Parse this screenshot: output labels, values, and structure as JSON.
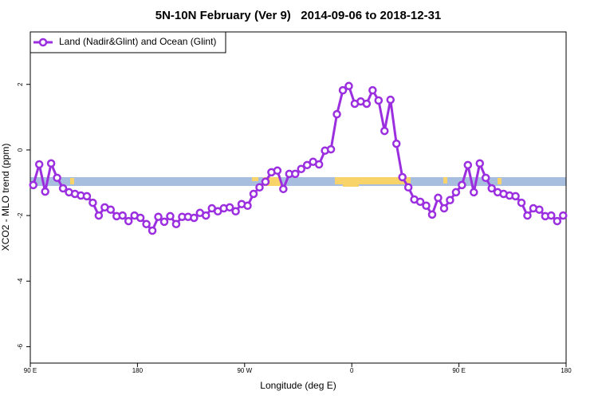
{
  "chart_data": {
    "type": "line",
    "title": "5N-10N February (Ver 9)   2014-09-06 to 2018-12-31",
    "xlabel": "Longitude (deg E)",
    "ylabel": "XCO2 - MLO trend (ppm)",
    "xlim": [
      90,
      540
    ],
    "xticks": [
      {
        "value": 90,
        "label": "90 E"
      },
      180,
      {
        "value": 270,
        "label": "90 W"
      },
      {
        "value": 360,
        "label": "0"
      },
      {
        "value": 450,
        "label": "90 E"
      },
      {
        "value": 540,
        "label": "180"
      }
    ],
    "ylim": [
      -6.5,
      3.6
    ],
    "yticks": [
      2,
      0,
      -2,
      -4,
      -6
    ],
    "legend": "top-left",
    "x": [
      92.5,
      97.5,
      102.5,
      107.5,
      112.5,
      117.5,
      122.5,
      127.5,
      132.5,
      137.5,
      142.5,
      147.5,
      152.5,
      157.5,
      162.5,
      167.5,
      172.5,
      177.5,
      182.5,
      187.5,
      192.5,
      197.5,
      202.5,
      207.5,
      212.5,
      217.5,
      222.5,
      227.5,
      232.5,
      237.5,
      242.5,
      247.5,
      252.5,
      257.5,
      262.5,
      267.5,
      272.5,
      277.5,
      282.5,
      287.5,
      292.5,
      297.5,
      302.5,
      307.5,
      312.5,
      317.5,
      322.5,
      327.5,
      332.5,
      337.5,
      342.5,
      347.5,
      352.5,
      357.5,
      362.5,
      367.5,
      372.5,
      377.5,
      382.5,
      387.5,
      392.5,
      397.5,
      402.5,
      407.5,
      412.5,
      417.5,
      422.5,
      427.5,
      432.5,
      437.5,
      442.5,
      447.5,
      452.5,
      457.5,
      462.5,
      467.5,
      472.5,
      477.5,
      482.5,
      487.5,
      492.5,
      497.5,
      502.5,
      507.5,
      512.5,
      517.5,
      522.5,
      527.5,
      532.5,
      537.5
    ],
    "series": [
      {
        "name": "Land (Nadir&Glint) and Ocean (Glint)",
        "color": "#9b2fe0",
        "values": [
          -1.07,
          -0.44,
          -1.27,
          -0.41,
          -0.85,
          -1.17,
          -1.29,
          -1.34,
          -1.39,
          -1.41,
          -1.61,
          -2.0,
          -1.75,
          -1.82,
          -2.02,
          -2.0,
          -2.17,
          -2.0,
          -2.07,
          -2.26,
          -2.46,
          -2.04,
          -2.19,
          -2.02,
          -2.26,
          -2.04,
          -2.04,
          -2.07,
          -1.92,
          -2.0,
          -1.78,
          -1.87,
          -1.78,
          -1.75,
          -1.87,
          -1.65,
          -1.7,
          -1.34,
          -1.14,
          -0.97,
          -0.68,
          -0.63,
          -1.19,
          -0.73,
          -0.73,
          -0.58,
          -0.46,
          -0.36,
          -0.44,
          -0.02,
          0.02,
          1.09,
          1.82,
          1.95,
          1.41,
          1.48,
          1.41,
          1.82,
          1.51,
          0.58,
          1.53,
          0.19,
          -0.83,
          -1.14,
          -1.51,
          -1.58,
          -1.7,
          -1.97,
          -1.46,
          -1.78,
          -1.53,
          -1.29,
          -1.07,
          -0.46,
          -1.29,
          -0.41,
          -0.85,
          -1.17,
          -1.29,
          -1.34,
          -1.39,
          -1.41,
          -1.61,
          -2.0,
          -1.78,
          -1.82,
          -2.02,
          -2.0,
          -2.17,
          -2.0
        ]
      }
    ]
  }
}
